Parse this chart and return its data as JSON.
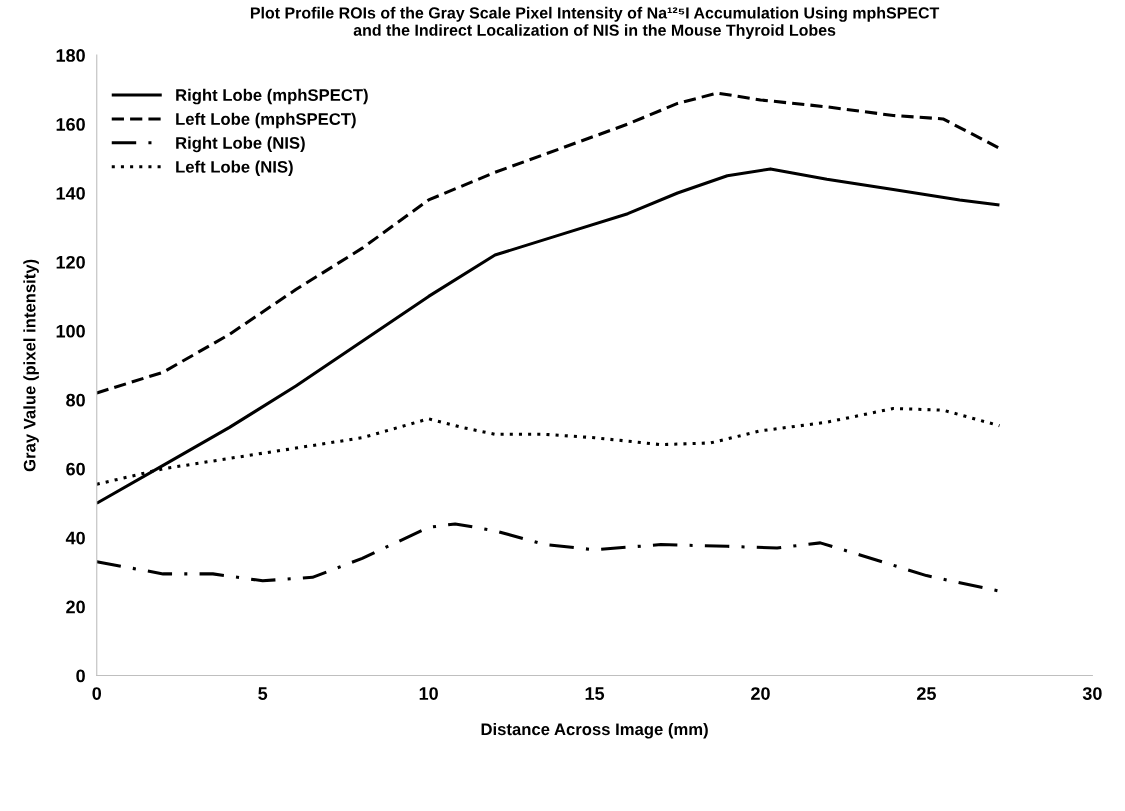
{
  "chart_data": {
    "type": "line",
    "title": "Plot Profile ROIs of the Gray Scale Pixel Intensity of Na¹²⁵I Accumulation Using mphSPECT\nand the Indirect Localization of NIS in the Mouse Thyroid Lobes",
    "xlabel": "Distance Across Image (mm)",
    "ylabel": "Gray Value (pixel intensity)",
    "xlim": [
      0,
      30
    ],
    "xticks": [
      0,
      5,
      10,
      15,
      20,
      25,
      30
    ],
    "ylim": [
      0,
      180
    ],
    "yticks": [
      0,
      20,
      40,
      60,
      80,
      100,
      120,
      140,
      160,
      180
    ],
    "grid": false,
    "legend": "top left",
    "series": [
      {
        "name": "Right Lobe (mphSPECT)",
        "color": "#000000",
        "line_style": "solid",
        "x": [
          0,
          2,
          4,
          6,
          8,
          10,
          12,
          14,
          16,
          17.5,
          19,
          20.3,
          22,
          24,
          26,
          27.2
        ],
        "values": [
          50,
          61,
          72,
          84,
          97,
          110,
          122,
          128,
          134,
          140,
          145,
          147,
          144,
          141,
          138,
          136.5
        ]
      },
      {
        "name": "Left Lobe (mphSPECT)",
        "color": "#000000",
        "line_style": "dashed",
        "x": [
          0,
          2,
          4,
          6,
          8,
          10,
          12,
          14,
          16,
          17.5,
          18.7,
          20,
          22,
          24,
          25.5,
          27.2
        ],
        "values": [
          82,
          88,
          99,
          112,
          124,
          138,
          146,
          153,
          160,
          166,
          169,
          167,
          165,
          162.5,
          161.5,
          153
        ]
      },
      {
        "name": "Right Lobe (NIS)",
        "color": "#000000",
        "line_style": "dashdot",
        "x": [
          0,
          2,
          3.5,
          5,
          6.5,
          8,
          10,
          10.8,
          12,
          13.5,
          15,
          17,
          19,
          20.5,
          21.8,
          23,
          25,
          27.2
        ],
        "values": [
          33,
          29.5,
          29.5,
          27.5,
          28.5,
          34,
          43,
          44,
          42,
          38,
          36.5,
          38,
          37.5,
          37,
          38.5,
          35,
          29,
          24.5
        ]
      },
      {
        "name": "Left Lobe (NIS)",
        "color": "#000000",
        "line_style": "dotted",
        "x": [
          0,
          2,
          4,
          6,
          8,
          10,
          11,
          12,
          13.5,
          15,
          17,
          18.5,
          20,
          22,
          24,
          25.5,
          27.2
        ],
        "values": [
          55.5,
          60,
          63,
          66,
          69,
          74.5,
          72,
          70,
          70,
          69,
          67,
          67.5,
          71,
          73.5,
          77.5,
          77,
          72.5
        ]
      }
    ]
  }
}
